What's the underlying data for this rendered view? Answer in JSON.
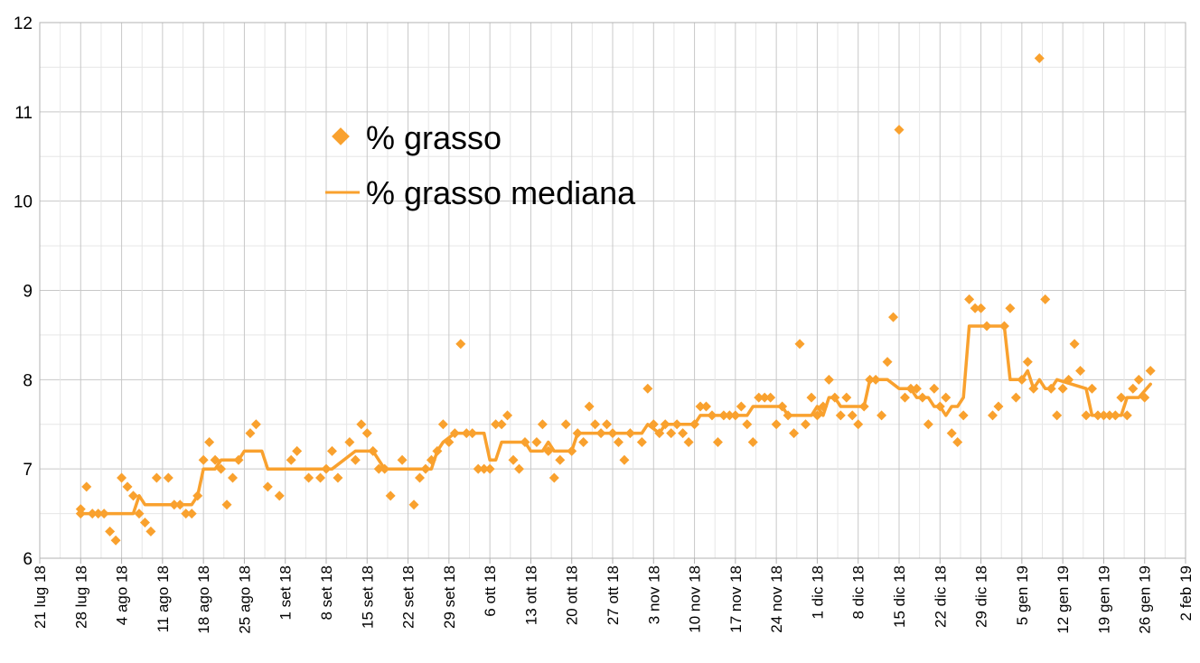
{
  "chart_data": {
    "type": "scatter",
    "title": "",
    "xlabel": "",
    "ylabel": "",
    "ylim": [
      6,
      12
    ],
    "yticks": [
      "6",
      "7",
      "8",
      "9",
      "10",
      "11",
      "12"
    ],
    "xlim": [
      "2018-07-21",
      "2019-02-02"
    ],
    "xticks": [
      {
        "date": "2018-07-21",
        "label": "21 lug 18"
      },
      {
        "date": "2018-07-28",
        "label": "28 lug 18"
      },
      {
        "date": "2018-08-04",
        "label": "4 ago 18"
      },
      {
        "date": "2018-08-11",
        "label": "11 ago 18"
      },
      {
        "date": "2018-08-18",
        "label": "18 ago 18"
      },
      {
        "date": "2018-08-25",
        "label": "25 ago 18"
      },
      {
        "date": "2018-09-01",
        "label": "1 set 18"
      },
      {
        "date": "2018-09-08",
        "label": "8 set 18"
      },
      {
        "date": "2018-09-15",
        "label": "15 set 18"
      },
      {
        "date": "2018-09-22",
        "label": "22 set 18"
      },
      {
        "date": "2018-09-29",
        "label": "29 set 18"
      },
      {
        "date": "2018-10-06",
        "label": "6 ott 18"
      },
      {
        "date": "2018-10-13",
        "label": "13 ott 18"
      },
      {
        "date": "2018-10-20",
        "label": "20 ott 18"
      },
      {
        "date": "2018-10-27",
        "label": "27 ott 18"
      },
      {
        "date": "2018-11-03",
        "label": "3 nov 18"
      },
      {
        "date": "2018-11-10",
        "label": "10 nov 18"
      },
      {
        "date": "2018-11-17",
        "label": "17 nov 18"
      },
      {
        "date": "2018-11-24",
        "label": "24 nov 18"
      },
      {
        "date": "2018-12-01",
        "label": "1 dic 18"
      },
      {
        "date": "2018-12-08",
        "label": "8 dic 18"
      },
      {
        "date": "2018-12-15",
        "label": "15 dic 18"
      },
      {
        "date": "2018-12-22",
        "label": "22 dic 18"
      },
      {
        "date": "2018-12-29",
        "label": "29 dic 18"
      },
      {
        "date": "2019-01-05",
        "label": "5 gen 19"
      },
      {
        "date": "2019-01-12",
        "label": "12 gen 19"
      },
      {
        "date": "2019-01-19",
        "label": "19 gen 19"
      },
      {
        "date": "2019-01-26",
        "label": "26 gen 19"
      },
      {
        "date": "2019-02-02",
        "label": "2 feb 19"
      }
    ],
    "grid": true,
    "legend_position": "upper-left",
    "series": [
      {
        "name": "% grasso",
        "kind": "scatter",
        "marker": "diamond",
        "color": "#F9A12E",
        "points": [
          [
            "2018-07-28",
            6.5
          ],
          [
            "2018-07-28",
            6.55
          ],
          [
            "2018-07-29",
            6.8
          ],
          [
            "2018-07-30",
            6.5
          ],
          [
            "2018-07-31",
            6.5
          ],
          [
            "2018-08-01",
            6.5
          ],
          [
            "2018-08-02",
            6.3
          ],
          [
            "2018-08-03",
            6.2
          ],
          [
            "2018-08-04",
            6.9
          ],
          [
            "2018-08-05",
            6.8
          ],
          [
            "2018-08-06",
            6.7
          ],
          [
            "2018-08-07",
            6.5
          ],
          [
            "2018-08-08",
            6.4
          ],
          [
            "2018-08-09",
            6.3
          ],
          [
            "2018-08-10",
            6.9
          ],
          [
            "2018-08-12",
            6.9
          ],
          [
            "2018-08-13",
            6.6
          ],
          [
            "2018-08-14",
            6.6
          ],
          [
            "2018-08-15",
            6.5
          ],
          [
            "2018-08-16",
            6.5
          ],
          [
            "2018-08-17",
            6.7
          ],
          [
            "2018-08-18",
            7.1
          ],
          [
            "2018-08-19",
            7.3
          ],
          [
            "2018-08-20",
            7.1
          ],
          [
            "2018-08-21",
            7.0
          ],
          [
            "2018-08-22",
            6.6
          ],
          [
            "2018-08-23",
            6.9
          ],
          [
            "2018-08-24",
            7.1
          ],
          [
            "2018-08-26",
            7.4
          ],
          [
            "2018-08-27",
            7.5
          ],
          [
            "2018-08-29",
            6.8
          ],
          [
            "2018-08-31",
            6.7
          ],
          [
            "2018-09-02",
            7.1
          ],
          [
            "2018-09-03",
            7.2
          ],
          [
            "2018-09-05",
            6.9
          ],
          [
            "2018-09-07",
            6.9
          ],
          [
            "2018-09-08",
            7.0
          ],
          [
            "2018-09-09",
            7.2
          ],
          [
            "2018-09-10",
            6.9
          ],
          [
            "2018-09-12",
            7.3
          ],
          [
            "2018-09-13",
            7.1
          ],
          [
            "2018-09-14",
            7.5
          ],
          [
            "2018-09-15",
            7.4
          ],
          [
            "2018-09-16",
            7.2
          ],
          [
            "2018-09-17",
            7.0
          ],
          [
            "2018-09-18",
            7.0
          ],
          [
            "2018-09-19",
            6.7
          ],
          [
            "2018-09-21",
            7.1
          ],
          [
            "2018-09-23",
            6.6
          ],
          [
            "2018-09-24",
            6.9
          ],
          [
            "2018-09-25",
            7.0
          ],
          [
            "2018-09-26",
            7.1
          ],
          [
            "2018-09-27",
            7.2
          ],
          [
            "2018-09-28",
            7.5
          ],
          [
            "2018-09-29",
            7.3
          ],
          [
            "2018-09-30",
            7.4
          ],
          [
            "2018-10-01",
            8.4
          ],
          [
            "2018-10-02",
            7.4
          ],
          [
            "2018-10-03",
            7.4
          ],
          [
            "2018-10-04",
            7.0
          ],
          [
            "2018-10-05",
            7.0
          ],
          [
            "2018-10-06",
            7.0
          ],
          [
            "2018-10-07",
            7.5
          ],
          [
            "2018-10-08",
            7.5
          ],
          [
            "2018-10-09",
            7.6
          ],
          [
            "2018-10-10",
            7.1
          ],
          [
            "2018-10-11",
            7.0
          ],
          [
            "2018-10-12",
            7.3
          ],
          [
            "2018-10-14",
            7.3
          ],
          [
            "2018-10-15",
            7.5
          ],
          [
            "2018-10-16",
            7.2
          ],
          [
            "2018-10-17",
            6.9
          ],
          [
            "2018-10-18",
            7.1
          ],
          [
            "2018-10-19",
            7.5
          ],
          [
            "2018-10-20",
            7.2
          ],
          [
            "2018-10-21",
            7.4
          ],
          [
            "2018-10-22",
            7.3
          ],
          [
            "2018-10-23",
            7.7
          ],
          [
            "2018-10-24",
            7.5
          ],
          [
            "2018-10-25",
            7.4
          ],
          [
            "2018-10-26",
            7.5
          ],
          [
            "2018-10-27",
            7.4
          ],
          [
            "2018-10-28",
            7.3
          ],
          [
            "2018-10-29",
            7.1
          ],
          [
            "2018-10-30",
            7.4
          ],
          [
            "2018-11-01",
            7.3
          ],
          [
            "2018-11-02",
            7.9
          ],
          [
            "2018-11-03",
            7.5
          ],
          [
            "2018-11-04",
            7.4
          ],
          [
            "2018-11-05",
            7.5
          ],
          [
            "2018-11-06",
            7.4
          ],
          [
            "2018-11-07",
            7.5
          ],
          [
            "2018-11-08",
            7.4
          ],
          [
            "2018-11-09",
            7.3
          ],
          [
            "2018-11-10",
            7.5
          ],
          [
            "2018-11-11",
            7.7
          ],
          [
            "2018-11-12",
            7.7
          ],
          [
            "2018-11-13",
            7.6
          ],
          [
            "2018-11-14",
            7.3
          ],
          [
            "2018-11-15",
            7.6
          ],
          [
            "2018-11-16",
            7.6
          ],
          [
            "2018-11-17",
            7.6
          ],
          [
            "2018-11-18",
            7.7
          ],
          [
            "2018-11-19",
            7.5
          ],
          [
            "2018-11-20",
            7.3
          ],
          [
            "2018-11-21",
            7.8
          ],
          [
            "2018-11-22",
            7.8
          ],
          [
            "2018-11-23",
            7.8
          ],
          [
            "2018-11-24",
            7.5
          ],
          [
            "2018-11-25",
            7.7
          ],
          [
            "2018-11-26",
            7.6
          ],
          [
            "2018-11-27",
            7.4
          ],
          [
            "2018-11-28",
            8.4
          ],
          [
            "2018-11-29",
            7.5
          ],
          [
            "2018-11-30",
            7.8
          ],
          [
            "2018-12-01",
            7.6
          ],
          [
            "2018-12-02",
            7.7
          ],
          [
            "2018-12-03",
            8.0
          ],
          [
            "2018-12-04",
            7.8
          ],
          [
            "2018-12-05",
            7.6
          ],
          [
            "2018-12-06",
            7.8
          ],
          [
            "2018-12-07",
            7.6
          ],
          [
            "2018-12-08",
            7.5
          ],
          [
            "2018-12-09",
            7.7
          ],
          [
            "2018-12-10",
            8.0
          ],
          [
            "2018-12-11",
            8.0
          ],
          [
            "2018-12-12",
            7.6
          ],
          [
            "2018-12-13",
            8.2
          ],
          [
            "2018-12-14",
            8.7
          ],
          [
            "2018-12-15",
            10.8
          ],
          [
            "2018-12-16",
            7.8
          ],
          [
            "2018-12-17",
            7.9
          ],
          [
            "2018-12-18",
            7.9
          ],
          [
            "2018-12-19",
            7.8
          ],
          [
            "2018-12-20",
            7.5
          ],
          [
            "2018-12-21",
            7.9
          ],
          [
            "2018-12-22",
            7.7
          ],
          [
            "2018-12-23",
            7.8
          ],
          [
            "2018-12-24",
            7.4
          ],
          [
            "2018-12-25",
            7.3
          ],
          [
            "2018-12-26",
            7.6
          ],
          [
            "2018-12-27",
            8.9
          ],
          [
            "2018-12-28",
            8.8
          ],
          [
            "2018-12-29",
            8.8
          ],
          [
            "2018-12-30",
            8.6
          ],
          [
            "2018-12-31",
            7.6
          ],
          [
            "2019-01-01",
            7.7
          ],
          [
            "2019-01-02",
            8.6
          ],
          [
            "2019-01-03",
            8.8
          ],
          [
            "2019-01-04",
            7.8
          ],
          [
            "2019-01-05",
            8.0
          ],
          [
            "2019-01-06",
            8.2
          ],
          [
            "2019-01-07",
            7.9
          ],
          [
            "2019-01-08",
            11.6
          ],
          [
            "2019-01-09",
            8.9
          ],
          [
            "2019-01-10",
            7.9
          ],
          [
            "2019-01-11",
            7.6
          ],
          [
            "2019-01-12",
            7.9
          ],
          [
            "2019-01-13",
            8.0
          ],
          [
            "2019-01-14",
            8.4
          ],
          [
            "2019-01-15",
            8.1
          ],
          [
            "2019-01-16",
            7.6
          ],
          [
            "2019-01-17",
            7.9
          ],
          [
            "2019-01-18",
            7.6
          ],
          [
            "2019-01-19",
            7.6
          ],
          [
            "2019-01-20",
            7.6
          ],
          [
            "2019-01-21",
            7.6
          ],
          [
            "2019-01-22",
            7.8
          ],
          [
            "2019-01-23",
            7.6
          ],
          [
            "2019-01-24",
            7.9
          ],
          [
            "2019-01-25",
            8.0
          ],
          [
            "2019-01-26",
            7.8
          ],
          [
            "2019-01-27",
            8.1
          ]
        ]
      },
      {
        "name": "% grasso mediana",
        "kind": "line",
        "color": "#F9A12E",
        "points": [
          [
            "2018-07-28",
            6.5
          ],
          [
            "2018-08-06",
            6.5
          ],
          [
            "2018-08-07",
            6.7
          ],
          [
            "2018-08-08",
            6.6
          ],
          [
            "2018-08-16",
            6.6
          ],
          [
            "2018-08-17",
            6.7
          ],
          [
            "2018-08-18",
            7.0
          ],
          [
            "2018-08-20",
            7.0
          ],
          [
            "2018-08-21",
            7.1
          ],
          [
            "2018-08-24",
            7.1
          ],
          [
            "2018-08-25",
            7.2
          ],
          [
            "2018-08-28",
            7.2
          ],
          [
            "2018-08-29",
            7.0
          ],
          [
            "2018-09-09",
            7.0
          ],
          [
            "2018-09-11",
            7.1
          ],
          [
            "2018-09-13",
            7.2
          ],
          [
            "2018-09-16",
            7.2
          ],
          [
            "2018-09-17",
            7.1
          ],
          [
            "2018-09-18",
            7.0
          ],
          [
            "2018-09-26",
            7.0
          ],
          [
            "2018-09-27",
            7.2
          ],
          [
            "2018-09-28",
            7.3
          ],
          [
            "2018-09-30",
            7.4
          ],
          [
            "2018-10-05",
            7.4
          ],
          [
            "2018-10-06",
            7.1
          ],
          [
            "2018-10-07",
            7.1
          ],
          [
            "2018-10-08",
            7.3
          ],
          [
            "2018-10-12",
            7.3
          ],
          [
            "2018-10-13",
            7.2
          ],
          [
            "2018-10-15",
            7.2
          ],
          [
            "2018-10-16",
            7.3
          ],
          [
            "2018-10-17",
            7.2
          ],
          [
            "2018-10-20",
            7.2
          ],
          [
            "2018-10-21",
            7.4
          ],
          [
            "2018-11-01",
            7.4
          ],
          [
            "2018-11-02",
            7.5
          ],
          [
            "2018-11-04",
            7.4
          ],
          [
            "2018-11-05",
            7.5
          ],
          [
            "2018-11-10",
            7.5
          ],
          [
            "2018-11-11",
            7.6
          ],
          [
            "2018-11-19",
            7.6
          ],
          [
            "2018-11-20",
            7.7
          ],
          [
            "2018-11-25",
            7.7
          ],
          [
            "2018-11-26",
            7.6
          ],
          [
            "2018-11-30",
            7.6
          ],
          [
            "2018-12-01",
            7.7
          ],
          [
            "2018-12-02",
            7.6
          ],
          [
            "2018-12-03",
            7.8
          ],
          [
            "2018-12-04",
            7.8
          ],
          [
            "2018-12-05",
            7.7
          ],
          [
            "2018-12-09",
            7.7
          ],
          [
            "2018-12-10",
            8.0
          ],
          [
            "2018-12-13",
            8.0
          ],
          [
            "2018-12-15",
            7.9
          ],
          [
            "2018-12-17",
            7.9
          ],
          [
            "2018-12-18",
            7.8
          ],
          [
            "2018-12-20",
            7.8
          ],
          [
            "2018-12-21",
            7.7
          ],
          [
            "2018-12-22",
            7.7
          ],
          [
            "2018-12-23",
            7.6
          ],
          [
            "2018-12-24",
            7.7
          ],
          [
            "2018-12-25",
            7.7
          ],
          [
            "2018-12-26",
            7.8
          ],
          [
            "2018-12-27",
            8.6
          ],
          [
            "2019-01-02",
            8.6
          ],
          [
            "2019-01-03",
            8.0
          ],
          [
            "2019-01-05",
            8.0
          ],
          [
            "2019-01-06",
            8.1
          ],
          [
            "2019-01-07",
            7.9
          ],
          [
            "2019-01-08",
            8.0
          ],
          [
            "2019-01-09",
            7.9
          ],
          [
            "2019-01-10",
            7.9
          ],
          [
            "2019-01-11",
            8.0
          ],
          [
            "2019-01-16",
            7.9
          ],
          [
            "2019-01-17",
            7.6
          ],
          [
            "2019-01-22",
            7.6
          ],
          [
            "2019-01-23",
            7.8
          ],
          [
            "2019-01-25",
            7.8
          ],
          [
            "2019-01-27",
            7.95
          ]
        ]
      }
    ]
  }
}
